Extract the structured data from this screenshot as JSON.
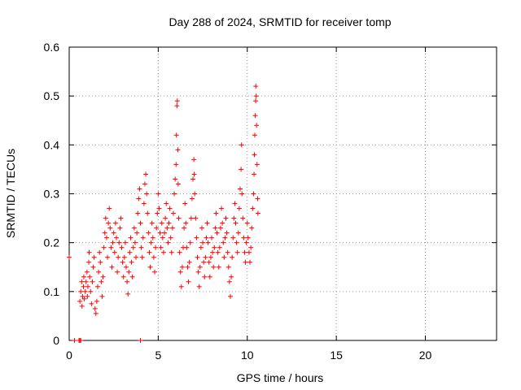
{
  "chart_data": {
    "type": "scatter",
    "title": "Day 288 of 2024, SRMTID for receiver tomp",
    "xlabel": "GPS time / hours",
    "ylabel": "SRMTID / TECUs",
    "xlim": [
      0,
      24
    ],
    "ylim": [
      0,
      0.6
    ],
    "xticks": [
      0,
      5,
      10,
      15,
      20
    ],
    "xtick_labels": [
      "0",
      "5",
      "10",
      "15",
      "20"
    ],
    "yticks": [
      0,
      0.1,
      0.2,
      0.3,
      0.4,
      0.5,
      0.6
    ],
    "ytick_labels": [
      "0",
      "0.1",
      "0.2",
      "0.3",
      "0.4",
      "0.5",
      "0.6"
    ],
    "grid": true,
    "marker": "+",
    "series": [
      {
        "name": "SRMTID",
        "color": "#ff0000",
        "points": [
          [
            0.0,
            0.17
          ],
          [
            0.3,
            0.0
          ],
          [
            0.55,
            0.0
          ],
          [
            0.6,
            0.0
          ],
          [
            0.65,
            0.0
          ],
          [
            4.0,
            0.0
          ],
          [
            0.6,
            0.08
          ],
          [
            0.65,
            0.1
          ],
          [
            0.7,
            0.12
          ],
          [
            0.72,
            0.07
          ],
          [
            0.75,
            0.09
          ],
          [
            0.8,
            0.11
          ],
          [
            0.82,
            0.13
          ],
          [
            0.85,
            0.085
          ],
          [
            0.9,
            0.1
          ],
          [
            0.95,
            0.12
          ],
          [
            1.0,
            0.14
          ],
          [
            1.02,
            0.09
          ],
          [
            1.05,
            0.11
          ],
          [
            1.1,
            0.16
          ],
          [
            1.12,
            0.18
          ],
          [
            1.15,
            0.13
          ],
          [
            1.2,
            0.1
          ],
          [
            1.25,
            0.075
          ],
          [
            1.3,
            0.12
          ],
          [
            1.35,
            0.15
          ],
          [
            1.4,
            0.17
          ],
          [
            1.45,
            0.065
          ],
          [
            1.5,
            0.055
          ],
          [
            1.55,
            0.08
          ],
          [
            1.6,
            0.11
          ],
          [
            1.65,
            0.14
          ],
          [
            1.7,
            0.18
          ],
          [
            1.75,
            0.16
          ],
          [
            1.8,
            0.12
          ],
          [
            1.85,
            0.09
          ],
          [
            1.9,
            0.13
          ],
          [
            1.95,
            0.19
          ],
          [
            2.0,
            0.22
          ],
          [
            2.05,
            0.25
          ],
          [
            2.1,
            0.21
          ],
          [
            2.15,
            0.17
          ],
          [
            2.2,
            0.24
          ],
          [
            2.25,
            0.27
          ],
          [
            2.3,
            0.23
          ],
          [
            2.35,
            0.19
          ],
          [
            2.4,
            0.15
          ],
          [
            2.45,
            0.2
          ],
          [
            2.5,
            0.22
          ],
          [
            2.55,
            0.18
          ],
          [
            2.6,
            0.24
          ],
          [
            2.65,
            0.21
          ],
          [
            2.7,
            0.14
          ],
          [
            2.75,
            0.17
          ],
          [
            2.8,
            0.2
          ],
          [
            2.85,
            0.23
          ],
          [
            2.9,
            0.25
          ],
          [
            2.95,
            0.19
          ],
          [
            3.0,
            0.16
          ],
          [
            3.05,
            0.13
          ],
          [
            3.1,
            0.17
          ],
          [
            3.15,
            0.2
          ],
          [
            3.2,
            0.15
          ],
          [
            3.25,
            0.12
          ],
          [
            3.3,
            0.095
          ],
          [
            3.35,
            0.14
          ],
          [
            3.4,
            0.18
          ],
          [
            3.45,
            0.21
          ],
          [
            3.5,
            0.16
          ],
          [
            3.55,
            0.13
          ],
          [
            3.6,
            0.19
          ],
          [
            3.65,
            0.23
          ],
          [
            3.7,
            0.2
          ],
          [
            3.75,
            0.17
          ],
          [
            3.8,
            0.22
          ],
          [
            3.85,
            0.26
          ],
          [
            3.9,
            0.29
          ],
          [
            3.95,
            0.31
          ],
          [
            4.0,
            0.24
          ],
          [
            4.05,
            0.19
          ],
          [
            4.1,
            0.17
          ],
          [
            4.15,
            0.21
          ],
          [
            4.2,
            0.28
          ],
          [
            4.25,
            0.32
          ],
          [
            4.3,
            0.34
          ],
          [
            4.35,
            0.3
          ],
          [
            4.4,
            0.26
          ],
          [
            4.45,
            0.22
          ],
          [
            4.5,
            0.18
          ],
          [
            4.55,
            0.15
          ],
          [
            4.6,
            0.2
          ],
          [
            4.65,
            0.24
          ],
          [
            4.7,
            0.21
          ],
          [
            4.75,
            0.17
          ],
          [
            4.8,
            0.14
          ],
          [
            4.85,
            0.19
          ],
          [
            4.9,
            0.23
          ],
          [
            4.95,
            0.26
          ],
          [
            5.0,
            0.3
          ],
          [
            5.05,
            0.27
          ],
          [
            5.1,
            0.22
          ],
          [
            5.15,
            0.19
          ],
          [
            5.2,
            0.24
          ],
          [
            5.25,
            0.21
          ],
          [
            5.3,
            0.18
          ],
          [
            5.35,
            0.22
          ],
          [
            5.4,
            0.25
          ],
          [
            5.45,
            0.28
          ],
          [
            5.5,
            0.23
          ],
          [
            5.55,
            0.2
          ],
          [
            5.6,
            0.24
          ],
          [
            5.65,
            0.27
          ],
          [
            5.7,
            0.21
          ],
          [
            5.75,
            0.18
          ],
          [
            5.8,
            0.23
          ],
          [
            5.85,
            0.26
          ],
          [
            5.9,
            0.3
          ],
          [
            5.95,
            0.33
          ],
          [
            6.0,
            0.36
          ],
          [
            6.02,
            0.42
          ],
          [
            6.05,
            0.48
          ],
          [
            6.07,
            0.49
          ],
          [
            6.1,
            0.39
          ],
          [
            6.12,
            0.32
          ],
          [
            6.15,
            0.25
          ],
          [
            6.2,
            0.18
          ],
          [
            6.25,
            0.14
          ],
          [
            6.3,
            0.11
          ],
          [
            6.35,
            0.15
          ],
          [
            6.4,
            0.19
          ],
          [
            6.45,
            0.23
          ],
          [
            6.5,
            0.28
          ],
          [
            6.55,
            0.24
          ],
          [
            6.6,
            0.19
          ],
          [
            6.65,
            0.15
          ],
          [
            6.7,
            0.12
          ],
          [
            6.75,
            0.16
          ],
          [
            6.8,
            0.2
          ],
          [
            6.85,
            0.25
          ],
          [
            6.9,
            0.29
          ],
          [
            6.95,
            0.33
          ],
          [
            7.0,
            0.37
          ],
          [
            7.02,
            0.34
          ],
          [
            7.05,
            0.3
          ],
          [
            7.1,
            0.25
          ],
          [
            7.15,
            0.21
          ],
          [
            7.2,
            0.17
          ],
          [
            7.25,
            0.14
          ],
          [
            7.3,
            0.11
          ],
          [
            7.35,
            0.15
          ],
          [
            7.4,
            0.19
          ],
          [
            7.45,
            0.23
          ],
          [
            7.5,
            0.2
          ],
          [
            7.55,
            0.16
          ],
          [
            7.6,
            0.13
          ],
          [
            7.65,
            0.17
          ],
          [
            7.7,
            0.21
          ],
          [
            7.75,
            0.24
          ],
          [
            7.8,
            0.2
          ],
          [
            7.85,
            0.16
          ],
          [
            7.9,
            0.13
          ],
          [
            7.95,
            0.17
          ],
          [
            8.0,
            0.21
          ],
          [
            8.05,
            0.18
          ],
          [
            8.1,
            0.15
          ],
          [
            8.15,
            0.19
          ],
          [
            8.2,
            0.23
          ],
          [
            8.25,
            0.26
          ],
          [
            8.3,
            0.22
          ],
          [
            8.35,
            0.18
          ],
          [
            8.4,
            0.15
          ],
          [
            8.45,
            0.19
          ],
          [
            8.5,
            0.23
          ],
          [
            8.55,
            0.27
          ],
          [
            8.6,
            0.24
          ],
          [
            8.65,
            0.2
          ],
          [
            8.7,
            0.17
          ],
          [
            8.75,
            0.21
          ],
          [
            8.8,
            0.25
          ],
          [
            8.85,
            0.22
          ],
          [
            8.9,
            0.18
          ],
          [
            8.95,
            0.15
          ],
          [
            9.0,
            0.12
          ],
          [
            9.05,
            0.09
          ],
          [
            9.1,
            0.13
          ],
          [
            9.15,
            0.17
          ],
          [
            9.2,
            0.21
          ],
          [
            9.25,
            0.25
          ],
          [
            9.3,
            0.28
          ],
          [
            9.35,
            0.24
          ],
          [
            9.4,
            0.2
          ],
          [
            9.45,
            0.18
          ],
          [
            9.5,
            0.22
          ],
          [
            9.55,
            0.27
          ],
          [
            9.6,
            0.31
          ],
          [
            9.65,
            0.35
          ],
          [
            9.68,
            0.4
          ],
          [
            9.7,
            0.3
          ],
          [
            9.75,
            0.25
          ],
          [
            9.8,
            0.21
          ],
          [
            9.85,
            0.18
          ],
          [
            9.9,
            0.16
          ],
          [
            9.95,
            0.2
          ],
          [
            10.0,
            0.24
          ],
          [
            10.05,
            0.21
          ],
          [
            10.1,
            0.18
          ],
          [
            10.15,
            0.16
          ],
          [
            10.2,
            0.19
          ],
          [
            10.25,
            0.23
          ],
          [
            10.3,
            0.27
          ],
          [
            10.35,
            0.3
          ],
          [
            10.38,
            0.34
          ],
          [
            10.4,
            0.38
          ],
          [
            10.42,
            0.42
          ],
          [
            10.45,
            0.46
          ],
          [
            10.47,
            0.49
          ],
          [
            10.48,
            0.52
          ],
          [
            10.5,
            0.5
          ],
          [
            10.52,
            0.44
          ],
          [
            10.55,
            0.36
          ],
          [
            10.58,
            0.29
          ],
          [
            10.6,
            0.26
          ]
        ]
      }
    ]
  }
}
